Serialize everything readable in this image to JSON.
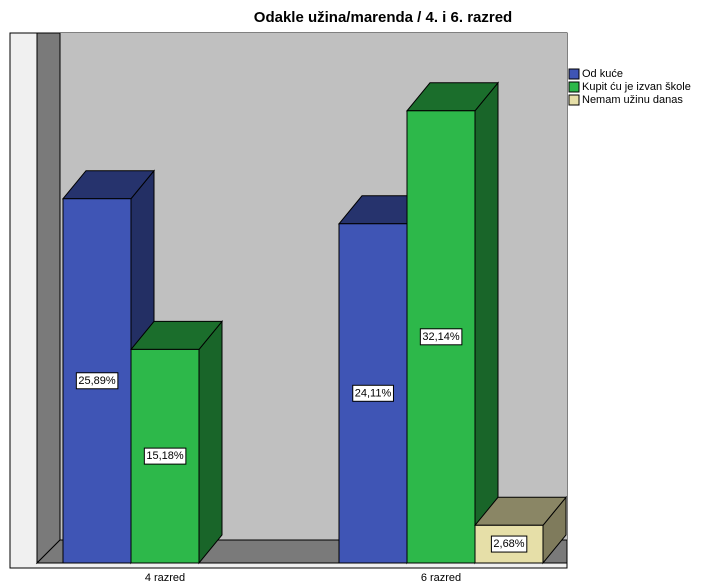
{
  "chart_data": {
    "type": "bar3d",
    "title": "Odakle užina/marenda / 4. i 6. razred",
    "categories": [
      "4 razred",
      "6 razred"
    ],
    "series": [
      {
        "name": "Od kuće",
        "color": "#3f55b5",
        "values": [
          25.89,
          24.11
        ],
        "value_labels": [
          "25,89%",
          "24,11%"
        ]
      },
      {
        "name": "Kupit ću je izvan škole",
        "color": "#2db84a",
        "values": [
          15.18,
          32.14
        ],
        "value_labels": [
          "15,18%",
          "32,14%"
        ]
      },
      {
        "name": "Nemam užinu danas",
        "color": "#e6dfa8",
        "values": [
          null,
          2.68
        ],
        "value_labels": [
          null,
          "2,68%"
        ]
      }
    ]
  }
}
